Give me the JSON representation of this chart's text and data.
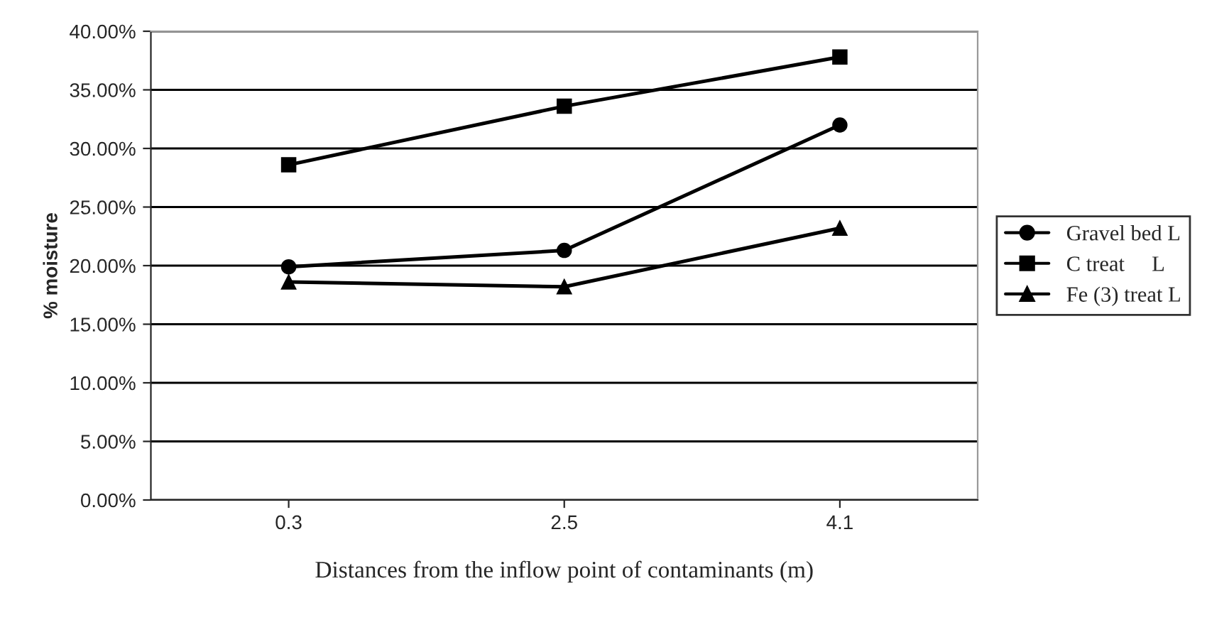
{
  "chart_data": {
    "type": "line",
    "xlabel": "Distances from the inflow point of contaminants (m)",
    "ylabel": "% moisture",
    "categories": [
      "0.3",
      "2.5",
      "4.1"
    ],
    "series": [
      {
        "name": "Gravel bed L",
        "color": "#000000",
        "marker": "circle",
        "values": [
          19.9,
          21.3,
          32.0
        ]
      },
      {
        "name": "C treat     L",
        "color": "#000000",
        "marker": "square",
        "values": [
          28.6,
          33.6,
          37.8
        ]
      },
      {
        "name": "Fe (3) treat L",
        "color": "#000000",
        "marker": "triangle",
        "values": [
          18.6,
          18.2,
          23.2
        ]
      }
    ],
    "ylim": [
      0,
      40
    ],
    "yticks": [
      {
        "value": 0,
        "label": "0.00%"
      },
      {
        "value": 5,
        "label": "5.00%"
      },
      {
        "value": 10,
        "label": "10.00%"
      },
      {
        "value": 15,
        "label": "15.00%"
      },
      {
        "value": 20,
        "label": "20.00%"
      },
      {
        "value": 25,
        "label": "25.00%"
      },
      {
        "value": 30,
        "label": "30.00%"
      },
      {
        "value": 35,
        "label": "35.00%"
      },
      {
        "value": 40,
        "label": "40.00%"
      }
    ],
    "grid": "y",
    "legend": "right",
    "line_style": "solid"
  }
}
